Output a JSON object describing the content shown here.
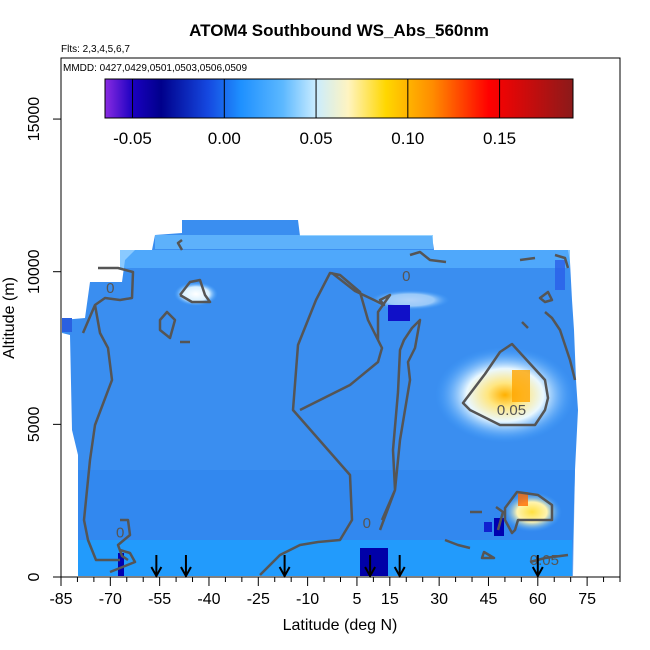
{
  "chart_data": {
    "type": "heatmap",
    "title": "ATOM4 Southbound WS_Abs_560nm",
    "subtitle_flights": "Flts: 2,3,4,5,6,7",
    "subtitle_dates": "MMDD: 0427,0429,0501,0503,0506,0509",
    "xlabel": "Latitude (deg N)",
    "ylabel": "Altitude (m)",
    "xlim": [
      -85,
      85
    ],
    "ylim": [
      0,
      17000
    ],
    "x_ticks": [
      "-85",
      "-70",
      "-55",
      "-40",
      "-25",
      "-10",
      "5",
      "15",
      "30",
      "45",
      "60",
      "75"
    ],
    "x_tick_values": [
      -85,
      -70,
      -55,
      -40,
      -25,
      -10,
      5,
      15,
      30,
      45,
      60,
      75
    ],
    "y_ticks": [
      "0",
      "5000",
      "10000",
      "15000"
    ],
    "y_tick_values": [
      0,
      5000,
      10000,
      15000
    ],
    "colorbar": {
      "range": [
        -0.065,
        0.19
      ],
      "ticks": [
        "-0.05",
        "0.00",
        "0.05",
        "0.10",
        "0.15"
      ],
      "tick_values": [
        -0.05,
        0.0,
        0.05,
        0.1,
        0.15
      ],
      "colors": [
        "#8a2be2",
        "#00008b",
        "#1e90ff",
        "#e6f5ff",
        "#ffd700",
        "#ff0000",
        "#8b1a1a"
      ]
    },
    "contour_labels": [
      {
        "text": "0",
        "lat": -70,
        "alt": 9300
      },
      {
        "text": "0",
        "lat": 20,
        "alt": 9700
      },
      {
        "text": "0.05",
        "lat": 52,
        "alt": 5300
      },
      {
        "text": "0",
        "lat": 8,
        "alt": 1600
      },
      {
        "text": "0",
        "lat": -67,
        "alt": 1300
      },
      {
        "text": "0.05",
        "lat": 62,
        "alt": 400
      }
    ],
    "sounding_markers_lat": [
      -56,
      -47,
      -17,
      9,
      18,
      60
    ]
  }
}
